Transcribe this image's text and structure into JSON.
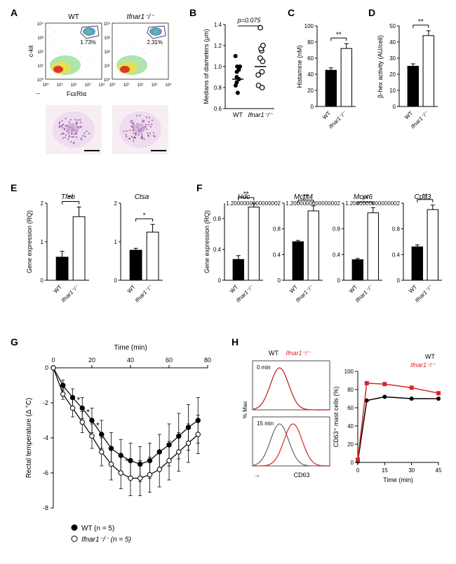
{
  "panelA": {
    "label": "A",
    "top_titles": [
      "WT",
      "Ifnar1⁻/⁻"
    ],
    "y_axis": "c-kit",
    "x_axis": "FcεRIα",
    "gate_pct": [
      "1.73%",
      "2.31%"
    ],
    "log_ticks": [
      "10⁰",
      "10¹",
      "10²",
      "10³",
      "10⁴"
    ]
  },
  "panelB": {
    "label": "B",
    "y_axis": "Medians of diameters (μm)",
    "p_text": "p=0.075",
    "categories": [
      "WT",
      "Ifnar1⁻/⁻"
    ],
    "wt_points": [
      0.75,
      0.85,
      0.82,
      0.9,
      0.88,
      0.95,
      0.97,
      1.0,
      1.1,
      1.0
    ],
    "ko_points": [
      0.82,
      0.8,
      0.92,
      0.95,
      1.05,
      1.08,
      1.15,
      1.17,
      1.37,
      1.2
    ],
    "ylim": [
      0.6,
      1.4
    ],
    "wt_median": 0.88,
    "ko_median": 1.0,
    "colors": {
      "wt": "#000000",
      "ko": "#000000",
      "ko_fill": "#ffffff"
    }
  },
  "panelC": {
    "label": "C",
    "y_axis": "Histamine (nM)",
    "sig": "**",
    "categories": [
      "WT",
      "Ifnar1⁻/⁻"
    ],
    "values": [
      45,
      72
    ],
    "errors": [
      3,
      6
    ],
    "ylim": [
      0,
      100
    ],
    "ytick_step": 20,
    "bar_fill": [
      "#000000",
      "#ffffff"
    ],
    "bar_stroke": "#000000"
  },
  "panelD": {
    "label": "D",
    "y_axis": "β-hex activity (AU/cell)",
    "sig": "**",
    "categories": [
      "WT",
      "Ifnar1⁻/⁻"
    ],
    "values": [
      25,
      44
    ],
    "errors": [
      1.5,
      3
    ],
    "ylim": [
      0,
      50
    ],
    "ytick_step": 10,
    "bar_fill": [
      "#000000",
      "#ffffff"
    ],
    "bar_stroke": "#000000"
  },
  "panelE": {
    "label": "E",
    "y_axis": "Gene expression (RQ)",
    "charts": [
      {
        "title": "Tfeb",
        "sig": "**",
        "values": [
          0.6,
          1.65
        ],
        "errors": [
          0.15,
          0.25
        ],
        "ylim": [
          0,
          2
        ],
        "categories": [
          "WT",
          "Ifnar1⁻/⁻"
        ]
      },
      {
        "title": "Ctsa",
        "sig": "*",
        "values": [
          0.78,
          1.25
        ],
        "errors": [
          0.05,
          0.2
        ],
        "ylim": [
          0,
          2
        ],
        "categories": [
          "WT",
          "Ifnar1⁻/⁻"
        ]
      }
    ],
    "bar_fill": [
      "#000000",
      "#ffffff"
    ],
    "bar_stroke": "#000000"
  },
  "panelF": {
    "label": "F",
    "y_axis": "Gene expression (RQ)",
    "charts": [
      {
        "title": "Hdc",
        "sig": "**",
        "values": [
          0.27,
          0.95
        ],
        "errors": [
          0.05,
          0.05
        ],
        "ylim": [
          0,
          1
        ],
        "categories": [
          "WT",
          "Ifnar1⁻/⁻"
        ]
      },
      {
        "title": "Mcpt4",
        "sig": "**",
        "values": [
          0.6,
          1.08
        ],
        "errors": [
          0.02,
          0.08
        ],
        "ylim": [
          0,
          1.2
        ],
        "categories": [
          "WT",
          "Ifnar1⁻/⁻"
        ]
      },
      {
        "title": "Mcpt6",
        "sig": "**",
        "values": [
          0.32,
          1.05
        ],
        "errors": [
          0.02,
          0.08
        ],
        "ylim": [
          0,
          1.2
        ],
        "categories": [
          "WT",
          "Ifnar1⁻/⁻"
        ]
      },
      {
        "title": "Cpa3",
        "sig": "**",
        "values": [
          0.52,
          1.1
        ],
        "errors": [
          0.03,
          0.07
        ],
        "ylim": [
          0,
          1.2
        ],
        "categories": [
          "WT",
          "Ifnar1⁻/⁻"
        ]
      }
    ],
    "bar_fill": [
      "#000000",
      "#ffffff"
    ],
    "bar_stroke": "#000000"
  },
  "panelG": {
    "label": "G",
    "x_axis": "Time (min)",
    "y_axis": "Rectal temperature (Δ °C)",
    "xlim": [
      0,
      80
    ],
    "xtick_step": 20,
    "ylim": [
      -8,
      0
    ],
    "ytick_step": 2,
    "series": [
      {
        "name": "WT (n = 5)",
        "marker_fill": "#000000",
        "x": [
          0,
          5,
          10,
          15,
          20,
          25,
          30,
          35,
          40,
          45,
          50,
          55,
          60,
          65,
          70,
          75
        ],
        "y": [
          0,
          -1.0,
          -1.7,
          -2.3,
          -3.0,
          -3.8,
          -4.6,
          -5.0,
          -5.3,
          -5.5,
          -5.3,
          -4.8,
          -4.4,
          -3.9,
          -3.4,
          -3.0
        ],
        "err": [
          0,
          0.3,
          0.5,
          0.6,
          0.7,
          0.8,
          0.9,
          0.9,
          1.0,
          1.0,
          1.0,
          1.0,
          1.2,
          1.3,
          1.3,
          1.3
        ]
      },
      {
        "name": "Ifnar1⁻/⁻ (n = 5)",
        "marker_fill": "#ffffff",
        "x": [
          0,
          5,
          10,
          15,
          20,
          25,
          30,
          35,
          40,
          45,
          50,
          55,
          60,
          65,
          70,
          75
        ],
        "y": [
          0,
          -1.5,
          -2.3,
          -3.1,
          -3.9,
          -4.8,
          -5.5,
          -6.0,
          -6.3,
          -6.3,
          -6.1,
          -5.8,
          -5.3,
          -4.8,
          -4.3,
          -3.8
        ],
        "err": [
          0,
          0.3,
          0.5,
          0.6,
          0.7,
          0.8,
          0.9,
          0.9,
          1.0,
          1.0,
          1.0,
          1.0,
          1.1,
          1.1,
          1.1,
          1.1
        ]
      }
    ],
    "sig_marks": {
      "x": [
        10,
        15,
        20,
        35
      ],
      "symbol": "*"
    }
  },
  "panelH": {
    "label": "H",
    "hist_titles": [
      "WT",
      "Ifnar1⁻/⁻"
    ],
    "hist_colors": {
      "wt": "#666666",
      "ko": "#d62728"
    },
    "hist_labels": [
      "0 min",
      "15 min"
    ],
    "hist_y": "% Max",
    "hist_x": "CD63",
    "line_chart": {
      "x_axis": "Time (min)",
      "y_axis": "CD63⁺ mast cells (%)",
      "xlim": [
        0,
        45
      ],
      "xtick_step": 15,
      "ylim": [
        0,
        100
      ],
      "ytick_step": 20,
      "series": [
        {
          "name": "WT",
          "color": "#000000",
          "marker": "circle",
          "x": [
            0,
            5,
            15,
            30,
            45
          ],
          "y": [
            1,
            68,
            72,
            70,
            70
          ]
        },
        {
          "name": "Ifnar1⁻/⁻",
          "color": "#d62728",
          "marker": "square",
          "x": [
            0,
            5,
            15,
            30,
            45
          ],
          "y": [
            3,
            87,
            86,
            82,
            76
          ]
        }
      ]
    }
  }
}
